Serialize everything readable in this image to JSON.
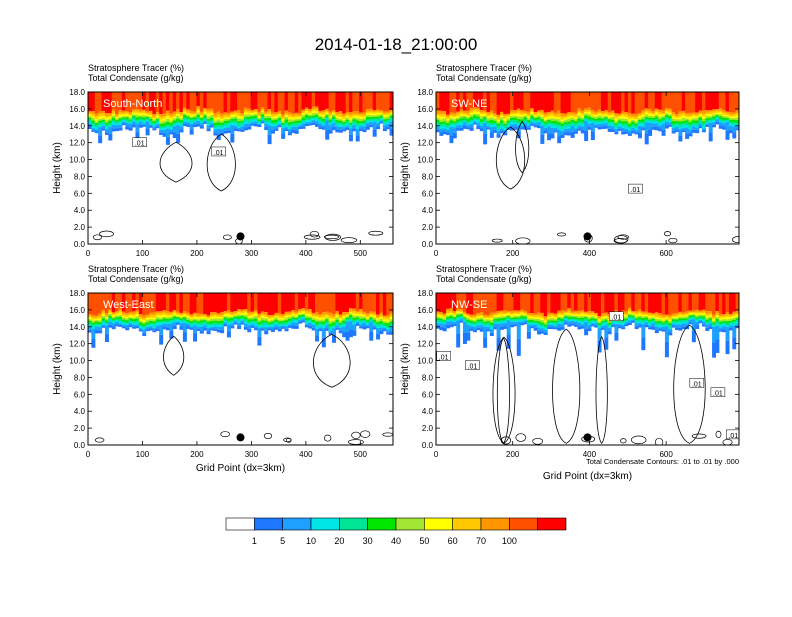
{
  "title": "2014-01-18_21:00:00",
  "contour_note": "Total Condensate Contours: .01 to .01 by .000",
  "chart_data": [
    {
      "type": "heatmap",
      "label": "South-North",
      "subtitle1": "Stratosphere Tracer   (%)",
      "subtitle2": "Total Condensate   (g/kg)",
      "xlabel": "",
      "ylabel": "Height (km)",
      "xlim": [
        0,
        560
      ],
      "ylim": [
        0,
        18
      ],
      "xticks": [
        "0",
        "100",
        "200",
        "300",
        "400",
        "500"
      ],
      "xtick_values": [
        0,
        100,
        200,
        300,
        400,
        500
      ],
      "yticks": [
        "0.0",
        "2.0",
        "4.0",
        "6.0",
        "8.0",
        "10.0",
        "12.0",
        "14.0",
        "16.0",
        "18.0"
      ],
      "marker_x": 280,
      "contour_labels": [
        {
          "text": ".01",
          "x": 95,
          "y": 12.0
        },
        {
          "text": ".01",
          "x": 240,
          "y": 10.9
        }
      ],
      "tracer_base_km": 14.1,
      "tracer_bottom_km": 12.4
    },
    {
      "type": "heatmap",
      "label": "SW-NE",
      "subtitle1": "Stratosphere Tracer   (%)",
      "subtitle2": "Total Condensate   (g/kg)",
      "xlabel": "",
      "ylabel": "Height (km)",
      "xlim": [
        0,
        790
      ],
      "ylim": [
        0,
        18
      ],
      "xticks": [
        "0",
        "200",
        "400",
        "600"
      ],
      "xtick_values": [
        0,
        200,
        400,
        600
      ],
      "yticks": [
        "0.0",
        "2.0",
        "4.0",
        "6.0",
        "8.0",
        "10.0",
        "12.0",
        "14.0",
        "16.0",
        "18.0"
      ],
      "marker_x": 395,
      "contour_labels": [
        {
          "text": ".01",
          "x": 520,
          "y": 6.5
        }
      ],
      "tracer_base_km": 14.0,
      "tracer_bottom_km": 12.2
    },
    {
      "type": "heatmap",
      "label": "West-East",
      "subtitle1": "Stratosphere Tracer   (%)",
      "subtitle2": "Total Condensate   (g/kg)",
      "xlabel": "Grid Point (dx=3km)",
      "ylabel": "Height (km)",
      "xlim": [
        0,
        560
      ],
      "ylim": [
        0,
        18
      ],
      "xticks": [
        "0",
        "100",
        "200",
        "300",
        "400",
        "500"
      ],
      "xtick_values": [
        0,
        100,
        200,
        300,
        400,
        500
      ],
      "yticks": [
        "0.0",
        "2.0",
        "4.0",
        "6.0",
        "8.0",
        "10.0",
        "12.0",
        "14.0",
        "16.0",
        "18.0"
      ],
      "marker_x": 280,
      "contour_labels": [],
      "tracer_base_km": 14.2,
      "tracer_bottom_km": 12.0
    },
    {
      "type": "heatmap",
      "label": "NW-SE",
      "subtitle1": "Stratosphere Tracer   (%)",
      "subtitle2": "Total Condensate   (g/kg)",
      "xlabel": "Grid Point (dx=3km)",
      "ylabel": "Height (km)",
      "xlim": [
        0,
        790
      ],
      "ylim": [
        0,
        18
      ],
      "xticks": [
        "0",
        "200",
        "400",
        "600"
      ],
      "xtick_values": [
        0,
        200,
        400,
        600
      ],
      "yticks": [
        "0.0",
        "2.0",
        "4.0",
        "6.0",
        "8.0",
        "10.0",
        "12.0",
        "14.0",
        "16.0",
        "18.0"
      ],
      "marker_x": 395,
      "contour_labels": [
        {
          "text": ".01",
          "x": 20,
          "y": 10.5
        },
        {
          "text": ".01",
          "x": 95,
          "y": 9.4
        },
        {
          "text": ".01",
          "x": 470,
          "y": 15.2
        },
        {
          "text": ".01",
          "x": 680,
          "y": 7.3
        },
        {
          "text": ".01",
          "x": 735,
          "y": 6.2
        },
        {
          "text": ".01",
          "x": 775,
          "y": 1.2
        }
      ],
      "tracer_base_km": 14.3,
      "tracer_bottom_km": 11.0
    }
  ],
  "colorbar": {
    "levels": [
      "1",
      "5",
      "10",
      "20",
      "30",
      "40",
      "50",
      "60",
      "70",
      "100"
    ],
    "colors": [
      "#ffffff",
      "#1e78ff",
      "#1ea0ff",
      "#00e6e6",
      "#00e696",
      "#00e600",
      "#a0e632",
      "#ffff00",
      "#ffc800",
      "#ff9600",
      "#ff5000",
      "#ff0000"
    ]
  }
}
